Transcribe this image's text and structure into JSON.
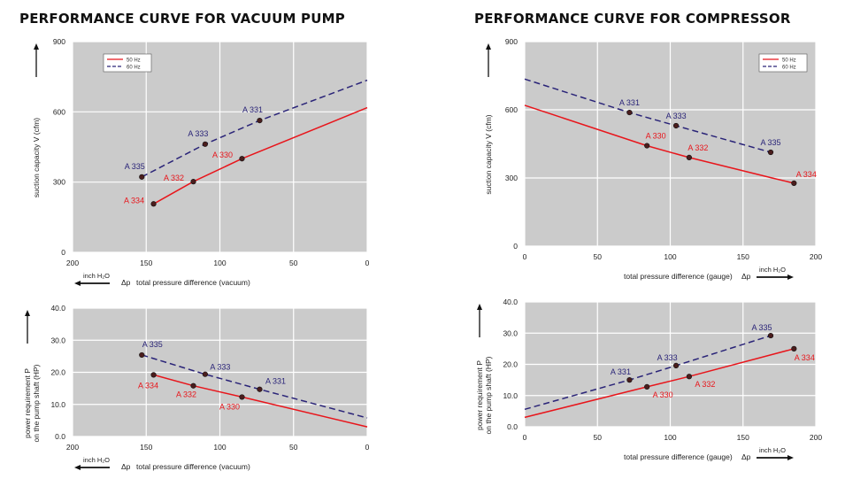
{
  "titles": {
    "vacuum": "PERFORMANCE CURVE FOR VACUUM PUMP",
    "compressor": "PERFORMANCE CURVE FOR COMPRESSOR"
  },
  "labels": {
    "suction": "suction capacity V (cfm)",
    "power_line1": "power requirement P",
    "power_line2": "on the pump shaft (HP)",
    "vacuum_x": "total pressure difference (vacuum)",
    "gauge_x": "total pressure difference (gauge)",
    "dp": "Δp",
    "unit": "inch H₂O"
  },
  "colors": {
    "hz50": "#e8151b",
    "hz60": "#2a2478",
    "plot_bg": "#cbcbcb",
    "grid": "#ffffff"
  },
  "chart_data": [
    {
      "id": "vacuum-suction",
      "type": "line",
      "xlim": [
        200,
        0
      ],
      "ylim": [
        0,
        900
      ],
      "xticks": [
        200,
        150,
        100,
        50,
        0
      ],
      "yticks": [
        0,
        300,
        600,
        900
      ],
      "ytick_format": "int",
      "legend": "top-left",
      "series": [
        {
          "name": "50 Hz",
          "style": "solid",
          "line": [
            [
              145,
              207
            ],
            [
              118,
              302
            ],
            [
              85,
              400
            ],
            [
              0,
              618
            ]
          ],
          "points": [
            {
              "label": "A 334",
              "x": 145,
              "y": 207
            },
            {
              "label": "A 332",
              "x": 118,
              "y": 302
            },
            {
              "label": "A 330",
              "x": 85,
              "y": 400
            }
          ]
        },
        {
          "name": "60 Hz",
          "style": "dashed",
          "line": [
            [
              153,
              322
            ],
            [
              110,
              462
            ],
            [
              73,
              563
            ],
            [
              0,
              735
            ]
          ],
          "points": [
            {
              "label": "A 335",
              "x": 153,
              "y": 322
            },
            {
              "label": "A 333",
              "x": 110,
              "y": 462
            },
            {
              "label": "A 331",
              "x": 73,
              "y": 563
            }
          ]
        }
      ]
    },
    {
      "id": "compressor-suction",
      "type": "line",
      "xlim": [
        0,
        200
      ],
      "ylim": [
        0,
        900
      ],
      "xticks": [
        0,
        50,
        100,
        150,
        200
      ],
      "yticks": [
        0,
        300,
        600,
        900
      ],
      "ytick_format": "int",
      "legend": "top-right",
      "series": [
        {
          "name": "50 Hz",
          "style": "solid",
          "line": [
            [
              0,
              620
            ],
            [
              84,
              442
            ],
            [
              113,
              390
            ],
            [
              170,
              300
            ],
            [
              185,
              277
            ]
          ],
          "points": [
            {
              "label": "A 330",
              "x": 84,
              "y": 442
            },
            {
              "label": "A 332",
              "x": 113,
              "y": 390
            },
            {
              "label": "A 334",
              "x": 185,
              "y": 277
            }
          ]
        },
        {
          "name": "60 Hz",
          "style": "dashed",
          "line": [
            [
              0,
              735
            ],
            [
              72,
              588
            ],
            [
              104,
              530
            ],
            [
              169,
              413
            ]
          ],
          "points": [
            {
              "label": "A 331",
              "x": 72,
              "y": 588
            },
            {
              "label": "A 333",
              "x": 104,
              "y": 530
            },
            {
              "label": "A 335",
              "x": 169,
              "y": 413
            }
          ]
        }
      ]
    },
    {
      "id": "vacuum-power",
      "type": "line",
      "xlim": [
        200,
        0
      ],
      "ylim": [
        0,
        40
      ],
      "xticks": [
        200,
        150,
        100,
        50,
        0
      ],
      "yticks": [
        0,
        10,
        20,
        30,
        40
      ],
      "ytick_format": "dec",
      "series": [
        {
          "name": "50 Hz",
          "style": "solid",
          "line": [
            [
              145,
              19.2
            ],
            [
              118,
              15.8
            ],
            [
              85,
              12.3
            ],
            [
              0,
              3
            ]
          ],
          "points": [
            {
              "label": "A 334",
              "x": 145,
              "y": 19.2
            },
            {
              "label": "A 332",
              "x": 118,
              "y": 15.8
            },
            {
              "label": "A 330",
              "x": 85,
              "y": 12.3
            }
          ]
        },
        {
          "name": "60 Hz",
          "style": "dashed",
          "line": [
            [
              153,
              25.4
            ],
            [
              110,
              19.4
            ],
            [
              73,
              14.7
            ],
            [
              0,
              5.8
            ]
          ],
          "points": [
            {
              "label": "A 335",
              "x": 153,
              "y": 25.4
            },
            {
              "label": "A 333",
              "x": 110,
              "y": 19.4
            },
            {
              "label": "A 331",
              "x": 73,
              "y": 14.7
            }
          ]
        }
      ]
    },
    {
      "id": "compressor-power",
      "type": "line",
      "xlim": [
        0,
        200
      ],
      "ylim": [
        0,
        40
      ],
      "xticks": [
        0,
        50,
        100,
        150,
        200
      ],
      "yticks": [
        0,
        10,
        20,
        30,
        40
      ],
      "ytick_format": "dec",
      "series": [
        {
          "name": "50 Hz",
          "style": "solid",
          "line": [
            [
              0,
              3
            ],
            [
              84,
              12.8
            ],
            [
              113,
              16.1
            ],
            [
              185,
              25
            ]
          ],
          "points": [
            {
              "label": "A 330",
              "x": 84,
              "y": 12.8
            },
            {
              "label": "A 332",
              "x": 113,
              "y": 16.1
            },
            {
              "label": "A 334",
              "x": 185,
              "y": 25
            }
          ]
        },
        {
          "name": "60 Hz",
          "style": "dashed",
          "line": [
            [
              0,
              5.6
            ],
            [
              72,
              15
            ],
            [
              104,
              19.6
            ],
            [
              169,
              29.2
            ]
          ],
          "points": [
            {
              "label": "A 331",
              "x": 72,
              "y": 15
            },
            {
              "label": "A 333",
              "x": 104,
              "y": 19.6
            },
            {
              "label": "A 335",
              "x": 169,
              "y": 29.2
            }
          ]
        }
      ]
    }
  ]
}
